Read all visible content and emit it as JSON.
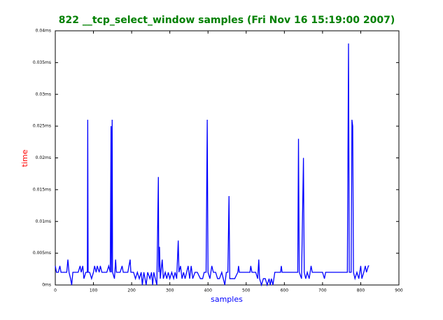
{
  "chart_data": {
    "type": "line",
    "title": "822 __tcp_select_window samples (Fri Nov 16 15:19:00 2007)",
    "xlabel": "samples",
    "ylabel": "time",
    "x": [
      0,
      3,
      8,
      12,
      15,
      20,
      25,
      30,
      33,
      36,
      40,
      43,
      46,
      50,
      55,
      60,
      65,
      68,
      72,
      75,
      80,
      84,
      85,
      86,
      90,
      95,
      100,
      103,
      107,
      110,
      115,
      118,
      122,
      126,
      130,
      135,
      140,
      144,
      146,
      147,
      149,
      150,
      155,
      158,
      160,
      165,
      170,
      175,
      178,
      185,
      190,
      196,
      198,
      205,
      210,
      215,
      220,
      225,
      228,
      232,
      238,
      242,
      248,
      252,
      255,
      258,
      262,
      266,
      270,
      271,
      273,
      275,
      280,
      283,
      288,
      292,
      296,
      300,
      305,
      310,
      314,
      318,
      322,
      324,
      328,
      332,
      336,
      340,
      344,
      348,
      352,
      356,
      360,
      366,
      372,
      380,
      386,
      390,
      395,
      398,
      400,
      405,
      410,
      414,
      420,
      425,
      430,
      436,
      440,
      444,
      448,
      452,
      455,
      457,
      462,
      470,
      478,
      480,
      482,
      490,
      500,
      510,
      512,
      515,
      520,
      525,
      530,
      533,
      535,
      540,
      545,
      550,
      555,
      560,
      563,
      566,
      570,
      575,
      580,
      590,
      592,
      594,
      600,
      610,
      620,
      630,
      635,
      637,
      639,
      645,
      650,
      652,
      656,
      660,
      665,
      670,
      673,
      680,
      690,
      700,
      705,
      708,
      720,
      740,
      750,
      760,
      765,
      768,
      770,
      775,
      777,
      779,
      781,
      785,
      790,
      795,
      800,
      803,
      808,
      812,
      815,
      820,
      822
    ],
    "series": [
      {
        "name": "time",
        "color": "#0000ff",
        "values": [
          0.003,
          0.002,
          0.002,
          0.003,
          0.002,
          0.002,
          0.002,
          0.002,
          0.004,
          0.002,
          0.001,
          0.0,
          0.002,
          0.002,
          0.002,
          0.002,
          0.003,
          0.002,
          0.003,
          0.001,
          0.002,
          0.002,
          0.026,
          0.002,
          0.002,
          0.001,
          0.002,
          0.003,
          0.002,
          0.003,
          0.002,
          0.003,
          0.002,
          0.002,
          0.002,
          0.002,
          0.003,
          0.002,
          0.025,
          0.002,
          0.026,
          0.002,
          0.001,
          0.004,
          0.002,
          0.002,
          0.002,
          0.003,
          0.002,
          0.002,
          0.002,
          0.004,
          0.002,
          0.002,
          0.001,
          0.002,
          0.001,
          0.002,
          0.0,
          0.002,
          0.0,
          0.002,
          0.001,
          0.002,
          0.0,
          0.002,
          0.001,
          0.0,
          0.017,
          0.002,
          0.006,
          0.001,
          0.004,
          0.001,
          0.002,
          0.001,
          0.002,
          0.001,
          0.002,
          0.001,
          0.002,
          0.001,
          0.007,
          0.002,
          0.003,
          0.001,
          0.002,
          0.001,
          0.002,
          0.003,
          0.001,
          0.003,
          0.001,
          0.002,
          0.002,
          0.001,
          0.001,
          0.002,
          0.002,
          0.026,
          0.002,
          0.001,
          0.003,
          0.002,
          0.002,
          0.001,
          0.001,
          0.002,
          0.001,
          0.0,
          0.002,
          0.002,
          0.014,
          0.001,
          0.001,
          0.001,
          0.002,
          0.003,
          0.002,
          0.002,
          0.002,
          0.002,
          0.003,
          0.002,
          0.002,
          0.002,
          0.001,
          0.004,
          0.001,
          0.0,
          0.001,
          0.001,
          0.0,
          0.001,
          0.0,
          0.001,
          0.0,
          0.002,
          0.002,
          0.002,
          0.003,
          0.002,
          0.002,
          0.002,
          0.002,
          0.002,
          0.002,
          0.023,
          0.002,
          0.001,
          0.02,
          0.002,
          0.001,
          0.002,
          0.001,
          0.003,
          0.002,
          0.002,
          0.002,
          0.002,
          0.001,
          0.002,
          0.002,
          0.002,
          0.002,
          0.002,
          0.002,
          0.038,
          0.002,
          0.002,
          0.026,
          0.025,
          0.002,
          0.001,
          0.002,
          0.001,
          0.003,
          0.001,
          0.002,
          0.003,
          0.002,
          0.003,
          0.003
        ]
      }
    ],
    "xlim": [
      0,
      900
    ],
    "xticks": [
      0,
      100,
      200,
      300,
      400,
      500,
      600,
      700,
      800,
      900
    ],
    "ylim": [
      0,
      0.04
    ],
    "yticks": [
      {
        "value": 0,
        "label": "0ms"
      },
      {
        "value": 0.005,
        "label": "0.005ms"
      },
      {
        "value": 0.01,
        "label": "0.01ms"
      },
      {
        "value": 0.015,
        "label": "0.015ms"
      },
      {
        "value": 0.02,
        "label": "0.02ms"
      },
      {
        "value": 0.025,
        "label": "0.025ms"
      },
      {
        "value": 0.03,
        "label": "0.03ms"
      },
      {
        "value": 0.035,
        "label": "0.035ms"
      },
      {
        "value": 0.04,
        "label": "0.04ms"
      }
    ],
    "grid": false
  }
}
